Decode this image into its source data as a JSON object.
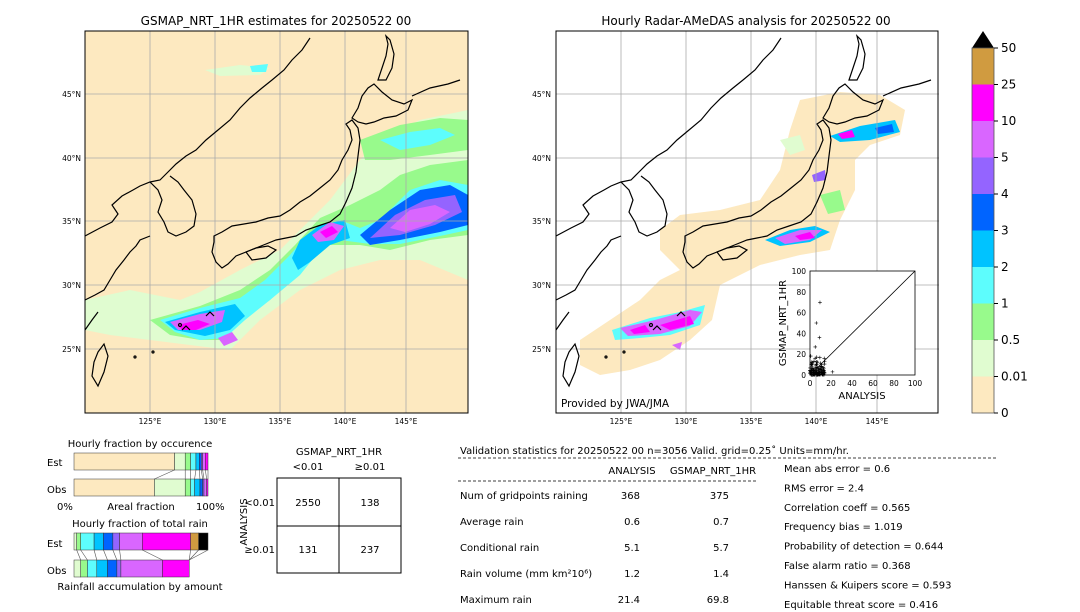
{
  "left_map": {
    "title": "GSMAP_NRT_1HR estimates for 20250522 00"
  },
  "right_map": {
    "title": "Hourly Radar-AMeDAS analysis for 20250522 00",
    "credit": "Provided by JWA/JMA"
  },
  "lon_ticks": [
    "125°E",
    "130°E",
    "135°E",
    "140°E",
    "145°E"
  ],
  "lat_ticks": [
    "45°N",
    "40°N",
    "35°N",
    "30°N",
    "25°N"
  ],
  "colorbar": {
    "labels": [
      "0",
      "0.01",
      "0.5",
      "1",
      "2",
      "3",
      "4",
      "5",
      "10",
      "25",
      "50"
    ],
    "colors": [
      "#fde9c0",
      "#e0fcd0",
      "#98fa8c",
      "#5dfdfd",
      "#00c3ff",
      "#0064ff",
      "#9464ff",
      "#d966ff",
      "#ff00ff",
      "#d09b40"
    ],
    "extend_color": "#000000"
  },
  "scatter": {
    "xlabel": "ANALYSIS",
    "ylabel": "GSMAP_NRT_1HR",
    "ticks": [
      "0",
      "20",
      "40",
      "60",
      "80",
      "100"
    ]
  },
  "occurrence": {
    "title": "Hourly fraction by occurence",
    "est_label": "Est",
    "obs_label": "Obs",
    "xlabel": "Areal fraction",
    "x0": "0%",
    "x1": "100%",
    "est": [
      0.75,
      0.08,
      0.04,
      0.04,
      0.025,
      0.015,
      0.01,
      0.02,
      0.02
    ],
    "obs": [
      0.6,
      0.23,
      0.04,
      0.03,
      0.04,
      0.02,
      0.01,
      0.02,
      0.01
    ]
  },
  "total_rain": {
    "title": "Hourly fraction of total rain",
    "est_label": "Est",
    "obs_label": "Obs",
    "xlabel": "Rainfall accumulation by amount",
    "est": [
      0.02,
      0.03,
      0.1,
      0.07,
      0.07,
      0.05,
      0.17,
      0.36,
      0.06,
      0.07
    ],
    "obs": [
      0.05,
      0.05,
      0.07,
      0.08,
      0.07,
      0.03,
      0.31,
      0.2
    ]
  },
  "contingency": {
    "col_title": "GSMAP_NRT_1HR",
    "row_title": "ANALYSIS",
    "col_labels": [
      "<0.01",
      "≥0.01"
    ],
    "row_labels": [
      "<0.01",
      "≥0.01"
    ],
    "cells": [
      [
        "2550",
        "138"
      ],
      [
        "131",
        "237"
      ]
    ]
  },
  "stats": {
    "header": "Validation statistics for 20250522 00  n=3056 Valid. grid=0.25˚ Units=mm/hr.",
    "col1": "ANALYSIS",
    "col2": "GSMAP_NRT_1HR",
    "rows": [
      {
        "label": "Num of gridpoints raining",
        "a": "368",
        "g": "375"
      },
      {
        "label": "Average rain",
        "a": "0.6",
        "g": "0.7"
      },
      {
        "label": "Conditional rain",
        "a": "5.1",
        "g": "5.7"
      },
      {
        "label": "Rain volume (mm km²10⁶)",
        "a": "1.2",
        "g": "1.4"
      },
      {
        "label": "Maximum rain",
        "a": "21.4",
        "g": "69.8"
      }
    ],
    "scores": [
      "Mean abs error =    0.6",
      "RMS error =    2.4",
      "Correlation coeff =  0.565",
      "Frequency bias =  1.019",
      "Probability of detection =  0.644",
      "False alarm ratio =  0.368",
      "Hanssen & Kuipers score =  0.593",
      "Equitable threat score =  0.416"
    ]
  }
}
